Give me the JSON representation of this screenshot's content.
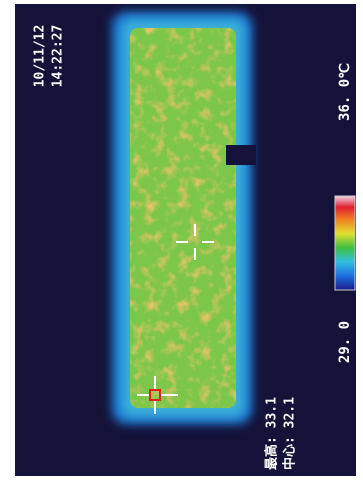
{
  "timestamp": {
    "date": "10/11/12",
    "time": "14:22:27"
  },
  "readings": {
    "max": "最高: 33.1",
    "center": "中心: 32.1"
  },
  "scale": {
    "min": "29. 0",
    "max": "36. 0℃"
  }
}
